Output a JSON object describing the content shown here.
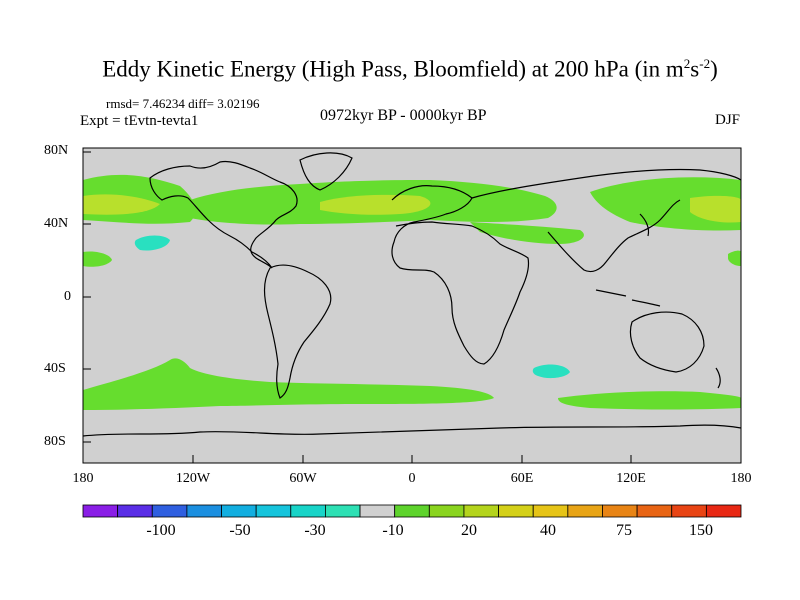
{
  "title": {
    "main": "Eddy Kinetic Energy (High Pass, Bloomfield) at 200 hPa (in m",
    "sup1": "2",
    "mid": "s",
    "sup2": "-2",
    "end": ")"
  },
  "stats": "rmsd= 7.46234 diff= 3.02196",
  "expt": "Expt = tEvtn-tevta1",
  "period": "0972kyr BP - 0000kyr BP",
  "season": "DJF",
  "y_axis": [
    "80N",
    "40N",
    "0",
    "40S",
    "80S"
  ],
  "x_axis": [
    "180",
    "120W",
    "60W",
    "0",
    "60E",
    "120E",
    "180"
  ],
  "colorbar": {
    "labels": [
      "-100",
      "-50",
      "-30",
      "-10",
      "20",
      "40",
      "75",
      "150"
    ],
    "colors": [
      "#8a1ee6",
      "#5a2ee6",
      "#2f5fe0",
      "#1b8fe0",
      "#12aee0",
      "#16c4dc",
      "#18d4c8",
      "#2de0b4",
      "#d0d0d0",
      "#5ed32c",
      "#8ad41f",
      "#b4d41c",
      "#d4d019",
      "#e6c417",
      "#e8a416",
      "#e88415",
      "#e86414",
      "#e84414",
      "#e82814"
    ]
  },
  "map_colors": {
    "ocean_land": "#d0d0d0",
    "band_green": "#66dd2e",
    "band_yellowgreen": "#b8e02c",
    "cyan_patch": "#29e0c0",
    "coast": "#000000"
  }
}
